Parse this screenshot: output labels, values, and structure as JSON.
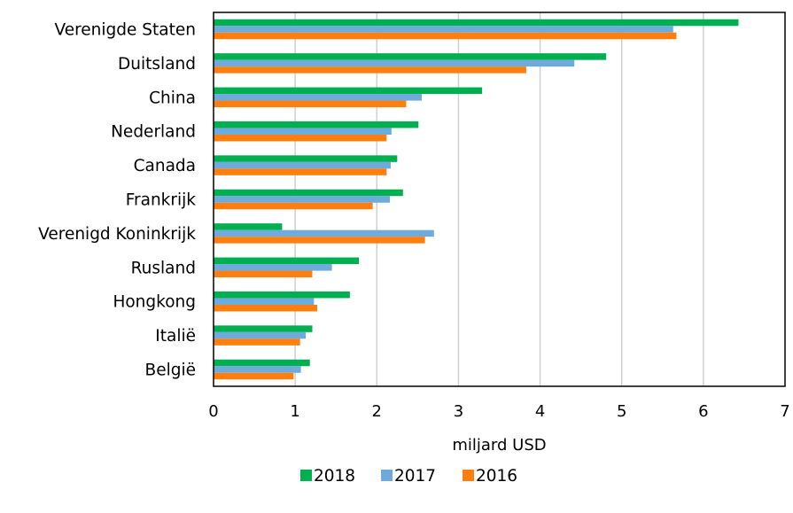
{
  "chart_data": {
    "type": "bar",
    "orientation": "horizontal",
    "categories": [
      "Verenigde Staten",
      "Duitsland",
      "China",
      "Nederland",
      "Canada",
      "Frankrijk",
      "Verenigd Koninkrijk",
      "Rusland",
      "Hongkong",
      "Italië",
      "België"
    ],
    "series": [
      {
        "name": "2018",
        "color": "#00b050",
        "values": [
          6.43,
          4.81,
          3.29,
          2.51,
          2.25,
          2.32,
          0.84,
          1.78,
          1.67,
          1.21,
          1.18
        ]
      },
      {
        "name": "2017",
        "color": "#6faadc",
        "values": [
          5.63,
          4.42,
          2.55,
          2.18,
          2.17,
          2.16,
          2.7,
          1.45,
          1.23,
          1.13,
          1.07
        ]
      },
      {
        "name": "2016",
        "color": "#ff7f0e",
        "values": [
          5.67,
          3.83,
          2.36,
          2.12,
          2.12,
          1.95,
          2.59,
          1.21,
          1.27,
          1.06,
          0.98
        ]
      }
    ],
    "xlabel": "miljard USD",
    "ylabel": "",
    "title": "",
    "xlim": [
      0,
      7
    ],
    "xticks": [
      "0",
      "1",
      "2",
      "3",
      "4",
      "5",
      "6",
      "7"
    ],
    "grid": "vertical",
    "legend_position": "bottom"
  }
}
